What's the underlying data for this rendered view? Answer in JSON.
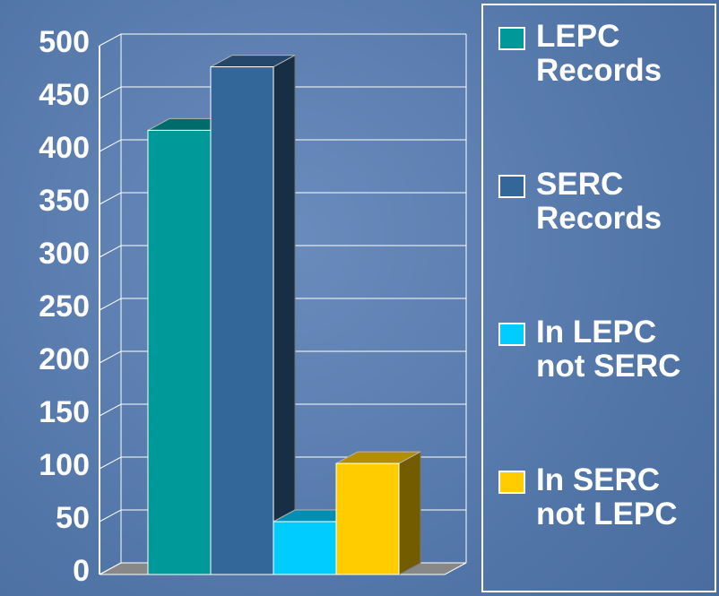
{
  "chart_data": {
    "type": "bar",
    "series": [
      {
        "name": "LEPC Records",
        "color": "#009999",
        "values": [
          420
        ]
      },
      {
        "name": "SERC Records",
        "color": "#336699",
        "values": [
          480
        ]
      },
      {
        "name": "In LEPC not SERC",
        "color": "#00ccff",
        "values": [
          50
        ]
      },
      {
        "name": "In SERC not LEPC",
        "color": "#ffcc00",
        "values": [
          105
        ]
      }
    ],
    "ylim": [
      0,
      500
    ],
    "yticks": [
      0,
      50,
      100,
      150,
      200,
      250,
      300,
      350,
      400,
      450,
      500
    ],
    "grid": true,
    "legend": "right"
  }
}
